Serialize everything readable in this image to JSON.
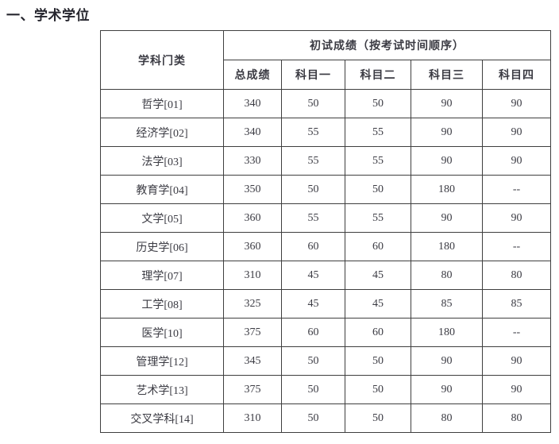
{
  "page_title": "一、学术学位",
  "table": {
    "header": {
      "category": "学科门类",
      "group": "初试成绩（按考试时间顺序）",
      "columns": [
        "总成绩",
        "科目一",
        "科目二",
        "科目三",
        "科目四"
      ]
    },
    "rows": [
      {
        "category": "哲学[01]",
        "values": [
          "340",
          "50",
          "50",
          "90",
          "90"
        ]
      },
      {
        "category": "经济学[02]",
        "values": [
          "340",
          "55",
          "55",
          "90",
          "90"
        ]
      },
      {
        "category": "法学[03]",
        "values": [
          "330",
          "55",
          "55",
          "90",
          "90"
        ]
      },
      {
        "category": "教育学[04]",
        "values": [
          "350",
          "50",
          "50",
          "180",
          "--"
        ]
      },
      {
        "category": "文学[05]",
        "values": [
          "360",
          "55",
          "55",
          "90",
          "90"
        ]
      },
      {
        "category": "历史学[06]",
        "values": [
          "360",
          "60",
          "60",
          "180",
          "--"
        ]
      },
      {
        "category": "理学[07]",
        "values": [
          "310",
          "45",
          "45",
          "80",
          "80"
        ]
      },
      {
        "category": "工学[08]",
        "values": [
          "325",
          "45",
          "45",
          "85",
          "85"
        ]
      },
      {
        "category": "医学[10]",
        "values": [
          "375",
          "60",
          "60",
          "180",
          "--"
        ]
      },
      {
        "category": "管理学[12]",
        "values": [
          "345",
          "50",
          "50",
          "90",
          "90"
        ]
      },
      {
        "category": "艺术学[13]",
        "values": [
          "375",
          "50",
          "50",
          "90",
          "90"
        ]
      },
      {
        "category": "交叉学科[14]",
        "values": [
          "310",
          "50",
          "50",
          "80",
          "80"
        ]
      }
    ]
  },
  "colors": {
    "background": "#ffffff",
    "text": "#3b3b43",
    "title_text": "#26262e",
    "border": "#3f3f3f"
  }
}
